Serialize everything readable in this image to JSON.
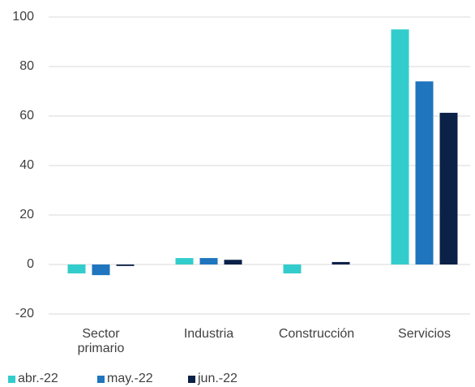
{
  "chart_data": {
    "type": "bar",
    "categories": [
      "Sector primario",
      "Industria",
      "Construcción",
      "Servicios"
    ],
    "series": [
      {
        "name": "abr.-22",
        "color": "#33cccc",
        "values": [
          -3.6,
          2.6,
          -3.6,
          95
        ]
      },
      {
        "name": "may.-22",
        "color": "#1f75be",
        "values": [
          -4.3,
          2.6,
          0,
          74
        ]
      },
      {
        "name": "jun.-22",
        "color": "#0b2148",
        "values": [
          -0.6,
          1.9,
          1,
          61.3
        ]
      }
    ],
    "ylim": [
      -20,
      100
    ],
    "yticks": [
      -20,
      0,
      20,
      40,
      60,
      80,
      100
    ],
    "grid": true,
    "legend": "bottom"
  }
}
